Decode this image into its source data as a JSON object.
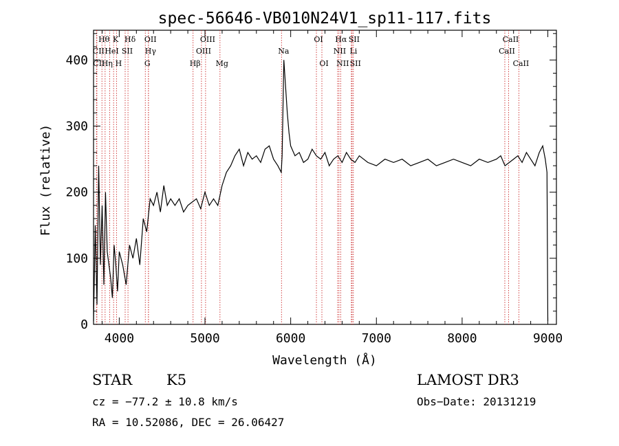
{
  "chart_data": {
    "type": "line",
    "title": "spec-56646-VB010N24V1_sp11-117.fits",
    "xlabel": "Wavelength (Å)",
    "ylabel": "Flux (relative)",
    "xlim": [
      3700,
      9100
    ],
    "ylim": [
      0,
      445
    ],
    "xticks": [
      4000,
      5000,
      6000,
      7000,
      8000,
      9000
    ],
    "yticks": [
      0,
      100,
      200,
      300,
      400
    ],
    "series": [
      {
        "name": "flux",
        "x": [
          3700,
          3720,
          3740,
          3760,
          3780,
          3800,
          3820,
          3840,
          3860,
          3880,
          3900,
          3920,
          3940,
          3960,
          3980,
          4000,
          4040,
          4080,
          4120,
          4160,
          4200,
          4240,
          4280,
          4320,
          4360,
          4400,
          4440,
          4480,
          4520,
          4560,
          4600,
          4650,
          4700,
          4750,
          4800,
          4850,
          4900,
          4950,
          5000,
          5050,
          5100,
          5150,
          5200,
          5250,
          5300,
          5350,
          5400,
          5450,
          5500,
          5550,
          5600,
          5650,
          5700,
          5750,
          5800,
          5850,
          5890,
          5900,
          5920,
          5940,
          5960,
          5980,
          6000,
          6050,
          6100,
          6150,
          6200,
          6250,
          6300,
          6350,
          6400,
          6450,
          6500,
          6550,
          6600,
          6650,
          6700,
          6750,
          6800,
          6900,
          7000,
          7100,
          7200,
          7300,
          7400,
          7500,
          7600,
          7700,
          7800,
          7900,
          8000,
          8100,
          8200,
          8300,
          8400,
          8450,
          8500,
          8550,
          8600,
          8650,
          8700,
          8750,
          8800,
          8850,
          8900,
          8940,
          8970,
          8990,
          9000
        ],
        "y": [
          5,
          150,
          30,
          240,
          90,
          180,
          60,
          200,
          110,
          90,
          70,
          40,
          120,
          90,
          50,
          110,
          90,
          60,
          120,
          100,
          130,
          90,
          160,
          140,
          190,
          180,
          200,
          170,
          210,
          180,
          190,
          180,
          190,
          170,
          180,
          185,
          190,
          175,
          200,
          180,
          190,
          180,
          210,
          230,
          240,
          255,
          265,
          240,
          260,
          250,
          255,
          245,
          265,
          270,
          250,
          240,
          230,
          255,
          400,
          360,
          320,
          290,
          270,
          255,
          260,
          245,
          250,
          265,
          255,
          250,
          260,
          240,
          250,
          255,
          245,
          260,
          250,
          245,
          255,
          245,
          240,
          250,
          245,
          250,
          240,
          245,
          250,
          240,
          245,
          250,
          245,
          240,
          250,
          245,
          250,
          255,
          240,
          245,
          250,
          255,
          245,
          260,
          250,
          240,
          260,
          270,
          250,
          230,
          5
        ]
      }
    ],
    "lines": [
      {
        "label": "Hθ",
        "x": 3798
      },
      {
        "label": "K",
        "x": 3934
      },
      {
        "label": "Hδ",
        "x": 4102
      },
      {
        "label": "OII",
        "x": 4340
      },
      {
        "label": "Hγ",
        "x": 4341
      },
      {
        "label": "G",
        "x": 4304
      },
      {
        "label": "CII",
        "x": 3735
      },
      {
        "label": "HeI",
        "x": 3889
      },
      {
        "label": "SII",
        "x": 4069
      },
      {
        "label": "CII",
        "x": 3739
      },
      {
        "label": "Hη",
        "x": 3835
      },
      {
        "label": "H",
        "x": 3968
      },
      {
        "label": "OIII",
        "x": 5007
      },
      {
        "label": "OIII",
        "x": 4959
      },
      {
        "label": "Hβ",
        "x": 4861
      },
      {
        "label": "Mg",
        "x": 5175
      },
      {
        "label": "Na",
        "x": 5893
      },
      {
        "label": "OI",
        "x": 6300
      },
      {
        "label": "OI",
        "x": 6364
      },
      {
        "label": "Hα",
        "x": 6563
      },
      {
        "label": "SII",
        "x": 6716
      },
      {
        "label": "NII",
        "x": 6548
      },
      {
        "label": "Li",
        "x": 6708
      },
      {
        "label": "NII",
        "x": 6583
      },
      {
        "label": "SII",
        "x": 6731
      },
      {
        "label": "CaII",
        "x": 8542
      },
      {
        "label": "CaII",
        "x": 8498
      },
      {
        "label": "CaII",
        "x": 8662
      }
    ],
    "colors": {
      "line_marker": "#cc2b2b",
      "series": "#000000",
      "axis": "#000000"
    }
  },
  "info": {
    "class_label": "STAR",
    "subclass": "K5",
    "survey": "LAMOST DR3",
    "cz": "cz = −77.2 ± 10.8 km/s",
    "obs_date": "Obs−Date: 20131219",
    "radec": "RA =  10.52086, DEC =  26.06427"
  }
}
